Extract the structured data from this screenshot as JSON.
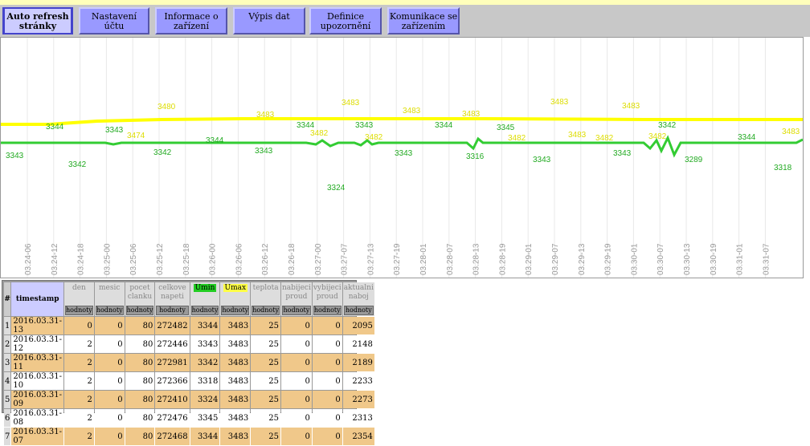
{
  "tabs": [
    {
      "label_line1": "Auto refresh",
      "label_line2": "stránky",
      "active": true
    },
    {
      "label_line1": "Nastavení účtu",
      "label_line2": ""
    },
    {
      "label_line1": "Informace o zařízení",
      "label_line2": ""
    },
    {
      "label_line1": "Výpis dat",
      "label_line2": ""
    },
    {
      "label_line1": "Definice upozornění",
      "label_line2": ""
    },
    {
      "label_line1": "Komunikace se",
      "label_line2": "zařízením"
    }
  ],
  "chart_data": {
    "type": "line",
    "x_ticks": [
      "03.24-06",
      "03.24-12",
      "03.24-18",
      "03.25-00",
      "03.25-06",
      "03.25-12",
      "03.25-18",
      "03.26-00",
      "03.26-06",
      "03.26-12",
      "03.26-18",
      "03.27-00",
      "03.27-07",
      "03.27-13",
      "03.27-19",
      "03.28-01",
      "03.28-07",
      "03.28-13",
      "03.28-19",
      "03.29-01",
      "03.29-07",
      "03.29-13",
      "03.29-19",
      "03.30-01",
      "03.30-07",
      "03.30-13",
      "03.30-19",
      "03.31-01",
      "03.31-07"
    ],
    "series": [
      {
        "name": "Umax",
        "color": "#ffff00",
        "label_color": "#dddd00",
        "labels": [
          "3344",
          "3480",
          "3343",
          "3474",
          "3483",
          "3483",
          "3344",
          "3483",
          "3482",
          "3343",
          "3483",
          "3482",
          "3344",
          "3483",
          "3483",
          "3345",
          "3482",
          "3483",
          "3482",
          "3342",
          "3482",
          "3344",
          "3483"
        ]
      },
      {
        "name": "Umin",
        "color": "#33cc33",
        "label_color": "#22aa22",
        "labels": [
          "3343",
          "3342",
          "3342",
          "3344",
          "3343",
          "3324",
          "3343",
          "3316",
          "3343",
          "3343",
          "3289",
          "3318"
        ]
      }
    ],
    "legend": "none",
    "grid": true
  },
  "table": {
    "headers": [
      "#",
      "timestamp",
      "den",
      "mesic",
      "pocet clanku",
      "celkove napeti",
      "Umin",
      "Umax",
      "teplota",
      "nabijeci proud",
      "vybijeci proud",
      "aktualni naboj"
    ],
    "button_label": "hodnoty",
    "rows": [
      [
        "1",
        "2016.03.31-13",
        "0",
        "0",
        "80",
        "272482",
        "3344",
        "3483",
        "25",
        "0",
        "0",
        "2095"
      ],
      [
        "2",
        "2016.03.31-12",
        "2",
        "0",
        "80",
        "272446",
        "3343",
        "3483",
        "25",
        "0",
        "0",
        "2148"
      ],
      [
        "3",
        "2016.03.31-11",
        "2",
        "0",
        "80",
        "272981",
        "3342",
        "3483",
        "25",
        "0",
        "0",
        "2189"
      ],
      [
        "4",
        "2016.03.31-10",
        "2",
        "0",
        "80",
        "272366",
        "3318",
        "3483",
        "25",
        "0",
        "0",
        "2233"
      ],
      [
        "5",
        "2016.03.31-09",
        "2",
        "0",
        "80",
        "272410",
        "3324",
        "3483",
        "25",
        "0",
        "0",
        "2273"
      ],
      [
        "6",
        "2016.03.31-08",
        "2",
        "0",
        "80",
        "272476",
        "3345",
        "3483",
        "25",
        "0",
        "0",
        "2313"
      ],
      [
        "7",
        "2016.03.31-07",
        "2",
        "0",
        "80",
        "272468",
        "3344",
        "3483",
        "25",
        "0",
        "0",
        "2354"
      ]
    ]
  }
}
